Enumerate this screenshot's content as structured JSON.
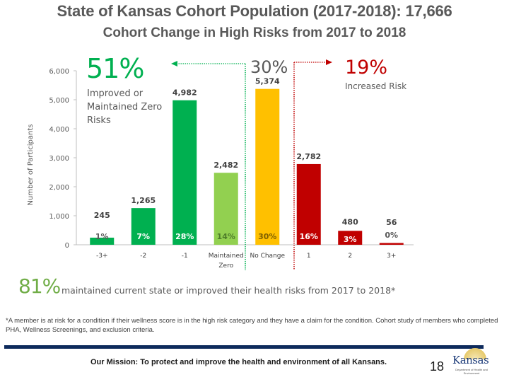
{
  "slide": {
    "title": "State of Kansas Cohort Population (2017-2018): 17,666",
    "subtitle": "Cohort Change in High Risks from 2017 to 2018",
    "summary": {
      "percent": "81%",
      "text": "maintained current state or improved their health risks from 2017 to 2018*"
    },
    "footnote": "*A member is at risk for a condition if their wellness score is in the high risk category and they have a claim for the condition. Cohort study of members who completed PHA, Wellness Screenings, and exclusion criteria.",
    "footer": {
      "mission": "Our Mission: To protect and improve the health and environment of all Kansans.",
      "page_number": "18",
      "logo_text": "Kansas",
      "logo_subtext": "Department of Health and Environment"
    },
    "colors": {
      "improved": "#00b050",
      "maintained_zero": "#92d050",
      "no_change": "#ffc000",
      "increased": "#c00000",
      "summary_green": "#70ad47",
      "footer_bar": "#0d2a5c"
    }
  },
  "chart_data": {
    "type": "bar",
    "title": "",
    "xlabel": "",
    "ylabel": "Number of Participants",
    "ylim": [
      0,
      6000
    ],
    "yticks": [
      0,
      1000,
      2000,
      3000,
      4000,
      5000,
      6000
    ],
    "ytick_labels": [
      "0",
      "1,000",
      "2,000",
      "3,000",
      "4,000",
      "5,000",
      "6,000"
    ],
    "grid": false,
    "categories": [
      "-3+",
      "-2",
      "-1",
      "Maintained Zero",
      "No Change",
      "1",
      "2",
      "3+"
    ],
    "category_labels": [
      [
        "-3+"
      ],
      [
        "-2"
      ],
      [
        "-1"
      ],
      [
        "Maintained",
        "Zero"
      ],
      [
        "No Change"
      ],
      [
        "1"
      ],
      [
        "2"
      ],
      [
        "3+"
      ]
    ],
    "values": [
      245,
      1265,
      4982,
      2482,
      5374,
      2782,
      480,
      56
    ],
    "value_labels": [
      "245",
      "1,265",
      "4,982",
      "2,482",
      "5,374",
      "2,782",
      "480",
      "56"
    ],
    "percent_labels": [
      "1%",
      "7%",
      "28%",
      "14%",
      "30%",
      "16%",
      "3%",
      "0%"
    ],
    "groups": [
      "improved",
      "improved",
      "improved",
      "maintained_zero",
      "no_change",
      "increased",
      "increased",
      "increased"
    ],
    "annotations": {
      "improved": {
        "percent": "51%",
        "label_lines": [
          "Improved or",
          "Maintained Zero",
          "Risks"
        ],
        "color": "#00b050"
      },
      "no_change": {
        "percent": "30%",
        "color": "#595959"
      },
      "increased": {
        "percent": "19%",
        "label": "Increased Risk",
        "color": "#c00000"
      }
    }
  }
}
